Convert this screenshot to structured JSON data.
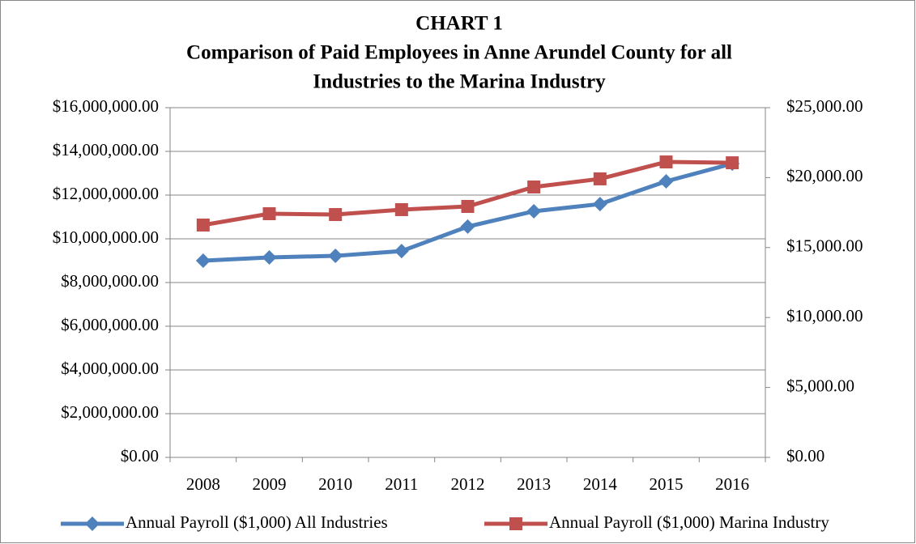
{
  "chart_data": {
    "type": "line",
    "title": "CHART 1",
    "subtitle": [
      "Comparison of Paid Employees in Anne Arundel County for all",
      "Industries to the Marina Industry"
    ],
    "categories": [
      "2008",
      "2009",
      "2010",
      "2011",
      "2012",
      "2013",
      "2014",
      "2015",
      "2016"
    ],
    "series": [
      {
        "name": "Annual Payroll ($1,000) All Industries",
        "color": "#4f81bd",
        "marker": "diamond",
        "values": [
          9000000,
          9150000,
          9220000,
          9440000,
          10560000,
          11260000,
          11590000,
          12630000,
          13440000
        ]
      },
      {
        "name": "Annual Payroll ($1,000) Marina Industry",
        "color": "#c0504d",
        "marker": "square",
        "axis": "y2",
        "values": [
          16610,
          17420,
          17360,
          17710,
          17940,
          19330,
          19910,
          21120,
          21060
        ]
      }
    ],
    "ylim": [
      0,
      16000000
    ],
    "yticks": [
      {
        "value": 0,
        "label": "$0.00"
      },
      {
        "value": 2000000,
        "label": "$2,000,000.00"
      },
      {
        "value": 4000000,
        "label": "$4,000,000.00"
      },
      {
        "value": 6000000,
        "label": "$6,000,000.00"
      },
      {
        "value": 8000000,
        "label": "$8,000,000.00"
      },
      {
        "value": 10000000,
        "label": "$10,000,000.00"
      },
      {
        "value": 12000000,
        "label": "$12,000,000.00"
      },
      {
        "value": 14000000,
        "label": "$14,000,000.00"
      },
      {
        "value": 16000000,
        "label": "$16,000,000.00"
      }
    ],
    "y2lim": [
      0,
      25000
    ],
    "y2ticks": [
      {
        "value": 0,
        "label": "$0.00"
      },
      {
        "value": 5000,
        "label": "$5,000.00"
      },
      {
        "value": 10000,
        "label": "$10,000.00"
      },
      {
        "value": 15000,
        "label": "$15,000.00"
      },
      {
        "value": 20000,
        "label": "$20,000.00"
      },
      {
        "value": 25000,
        "label": "$25,000.00"
      }
    ],
    "grid": true,
    "legend": "bottom"
  }
}
